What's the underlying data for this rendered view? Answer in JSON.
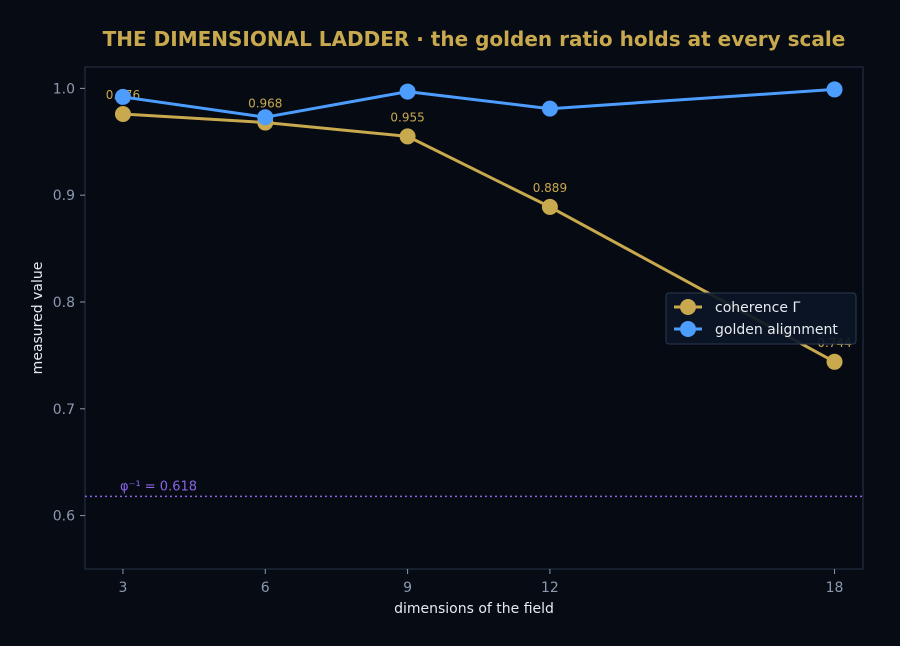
{
  "chart_data": {
    "type": "line",
    "title": "THE DIMENSIONAL LADDER  ·  the golden ratio holds at every scale",
    "xlabel": "dimensions of the field",
    "ylabel": "measured value",
    "x": [
      3,
      6,
      9,
      12,
      18
    ],
    "x_ticks": [
      "3",
      "6",
      "9",
      "12",
      "18"
    ],
    "xlim": [
      2.2,
      18.6
    ],
    "ylim": [
      0.55,
      1.02
    ],
    "y_ticks": [
      "0.6",
      "0.7",
      "0.8",
      "0.9",
      "1.0"
    ],
    "series": [
      {
        "name": "coherence Γ",
        "values": [
          0.976,
          0.968,
          0.955,
          0.889,
          0.744
        ],
        "labels": [
          "0.976",
          "0.968",
          "0.955",
          "0.889",
          "0.744"
        ],
        "color": "#c9a94e"
      },
      {
        "name": "golden alignment",
        "values": [
          0.992,
          0.973,
          0.997,
          0.981,
          0.999
        ],
        "color": "#4d9dff"
      }
    ],
    "reference_line": {
      "value": 0.618,
      "label": "φ⁻¹ = 0.618",
      "color": "#8a63e6"
    },
    "legend_position": "center-right",
    "grid": false
  }
}
